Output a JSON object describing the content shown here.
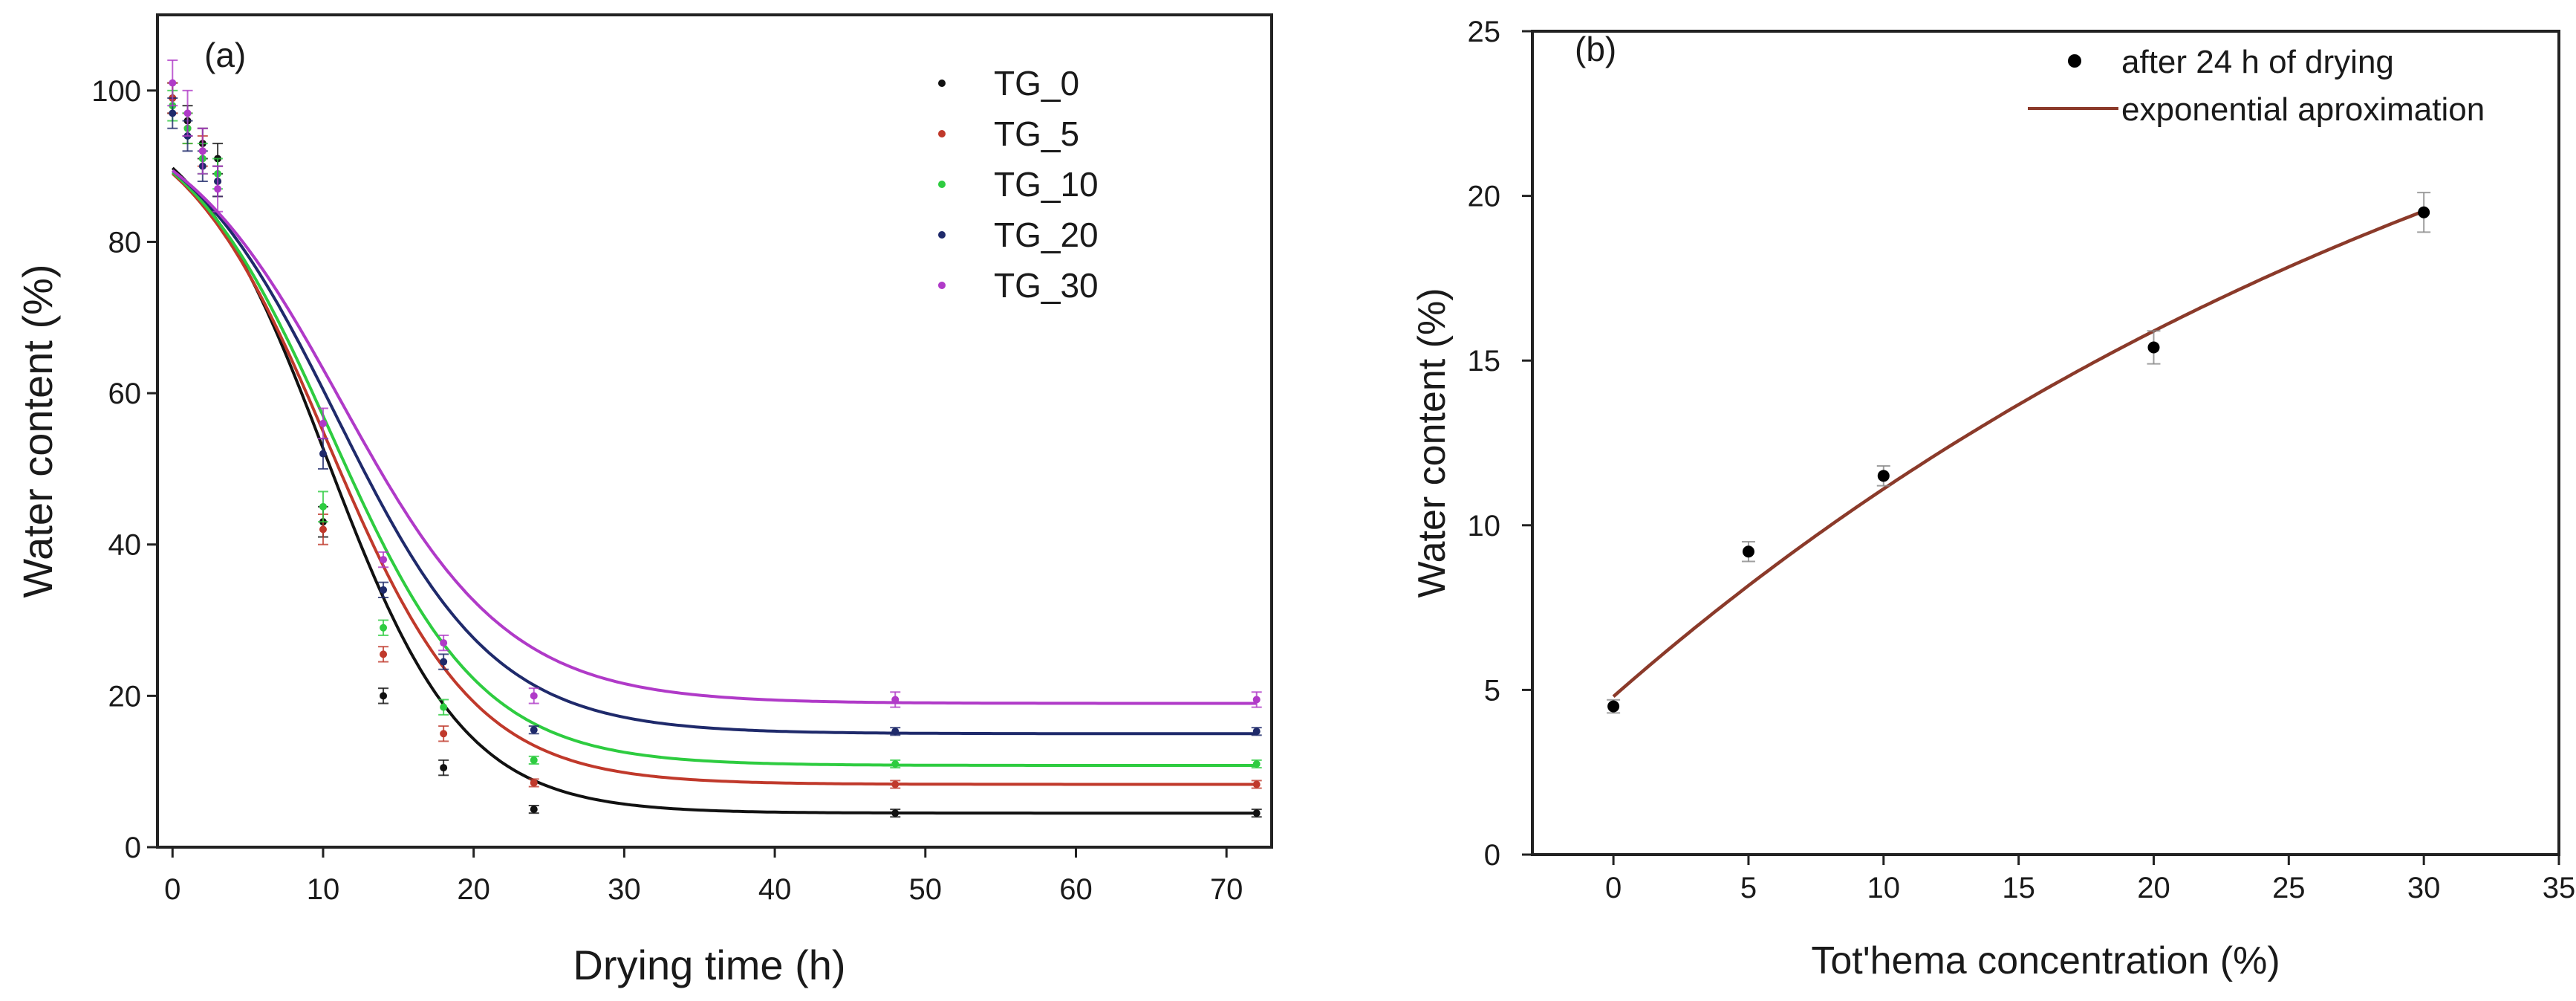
{
  "chart_data": [
    {
      "panel_label": "(a)",
      "type": "line",
      "xlabel": "Drying time (h)",
      "ylabel": "Water content (%)",
      "xlim": [
        -1,
        73
      ],
      "ylim": [
        0,
        110
      ],
      "x_ticks": [
        0,
        10,
        20,
        30,
        40,
        50,
        60,
        70
      ],
      "y_ticks": [
        0,
        20,
        40,
        60,
        80,
        100
      ],
      "legend_position": "top-right",
      "series": [
        {
          "name": "TG_0",
          "color": "#111111",
          "x": [
            0,
            1,
            2,
            3,
            10,
            14,
            18,
            24,
            48,
            72
          ],
          "y": [
            99,
            96,
            93,
            91,
            43,
            20,
            10.5,
            5,
            4.5,
            4.5
          ],
          "err": [
            2,
            2,
            2,
            2,
            2,
            1,
            1,
            0.5,
            0.5,
            0.5
          ],
          "fit": {
            "bottom": 4.5,
            "top": 98.8,
            "t0": 10.2,
            "k": 0.22
          }
        },
        {
          "name": "TG_5",
          "color": "#c0392b",
          "x": [
            0,
            1,
            2,
            3,
            10,
            14,
            18,
            24,
            48,
            72
          ],
          "y": [
            99,
            95,
            92,
            88,
            42,
            25.5,
            15,
            8.5,
            8.3,
            8.3
          ],
          "err": [
            2,
            2,
            2,
            2,
            2,
            1,
            1,
            0.5,
            0.5,
            0.5
          ],
          "fit": {
            "bottom": 8.3,
            "top": 98.8,
            "t0": 10.3,
            "k": 0.205
          }
        },
        {
          "name": "TG_10",
          "color": "#2ecc40",
          "x": [
            0,
            1,
            2,
            3,
            10,
            14,
            18,
            24,
            48,
            72
          ],
          "y": [
            98,
            95,
            91,
            89,
            45,
            29,
            18.5,
            11.5,
            11,
            11
          ],
          "err": [
            2,
            2,
            2,
            2,
            2,
            1,
            1,
            0.5,
            0.5,
            0.5
          ],
          "fit": {
            "bottom": 10.8,
            "top": 98.8,
            "t0": 10.5,
            "k": 0.2
          }
        },
        {
          "name": "TG_20",
          "color": "#1f2a6b",
          "x": [
            0,
            1,
            2,
            3,
            10,
            14,
            18,
            24,
            48,
            72
          ],
          "y": [
            97,
            94,
            90,
            88,
            52,
            34,
            24.5,
            15.5,
            15.3,
            15.3
          ],
          "err": [
            2,
            2,
            2,
            2,
            2,
            1,
            1,
            0.5,
            0.5,
            0.5
          ],
          "fit": {
            "bottom": 15,
            "top": 98.8,
            "t0": 10.9,
            "k": 0.19
          }
        },
        {
          "name": "TG_30",
          "color": "#b03ac8",
          "x": [
            0,
            1,
            2,
            3,
            10,
            14,
            18,
            24,
            48,
            72
          ],
          "y": [
            101,
            97,
            92,
            87,
            56,
            38,
            27,
            20,
            19.5,
            19.5
          ],
          "err": [
            3,
            3,
            3,
            3,
            2,
            1,
            1,
            1,
            1,
            1
          ],
          "fit": {
            "bottom": 19,
            "top": 98.8,
            "t0": 11.2,
            "k": 0.18
          }
        }
      ]
    },
    {
      "panel_label": "(b)",
      "type": "scatter",
      "xlabel": "Tot'hema concentration (%)",
      "ylabel": "Water content  (%)",
      "xlim": [
        -3,
        35
      ],
      "ylim": [
        0,
        25
      ],
      "x_ticks": [
        0,
        5,
        10,
        15,
        20,
        25,
        30,
        35
      ],
      "y_ticks": [
        0,
        5,
        10,
        15,
        20,
        25
      ],
      "legend_position": "top-right",
      "series": [
        {
          "name": "after 24 h of drying",
          "color": "#000000",
          "x": [
            0,
            5,
            10,
            20,
            30
          ],
          "y": [
            4.5,
            9.2,
            11.5,
            15.4,
            19.5
          ],
          "err": [
            0.2,
            0.3,
            0.3,
            0.5,
            0.6
          ]
        },
        {
          "name": "exponential aproximation",
          "color": "#8b3a2a",
          "fit": {
            "a": 31.1,
            "b": 26.3,
            "c": 0.0274,
            "x_start": 0,
            "x_end": 30
          }
        }
      ]
    }
  ]
}
